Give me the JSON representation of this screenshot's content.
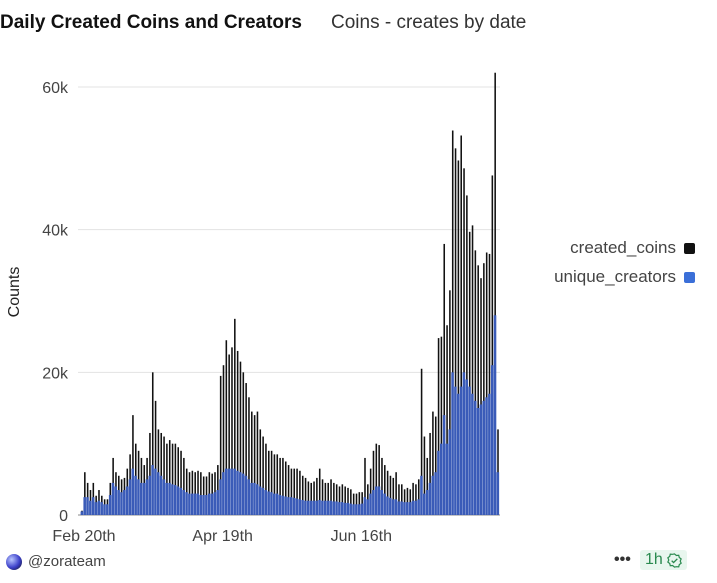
{
  "header": {
    "title": "Daily Created Coins and Creators",
    "subtitle": "Coins - creates by date"
  },
  "footer": {
    "user": "@zorateam",
    "more": "•••",
    "freshness": "1h",
    "status_icon": "check-shield-icon"
  },
  "chart_data": {
    "type": "bar",
    "ylabel": "Counts",
    "ylim": [
      0,
      60000
    ],
    "y_ticks": [
      "0",
      "20k",
      "40k",
      "60k"
    ],
    "y_tick_values": [
      0,
      20000,
      40000,
      60000
    ],
    "x_ticks": [
      {
        "label": "Feb 20th",
        "index": 0
      },
      {
        "label": "Apr 19th",
        "index": 49
      },
      {
        "label": "Jun 16th",
        "index": 98
      }
    ],
    "grid": true,
    "legend": "right",
    "series": [
      {
        "name": "created_coins",
        "color": "#111111",
        "values": [
          600,
          6000,
          4500,
          3500,
          4500,
          2700,
          3500,
          2700,
          2200,
          2200,
          4500,
          8000,
          6000,
          5500,
          5000,
          5200,
          6500,
          8500,
          14000,
          10000,
          9000,
          8000,
          7000,
          8000,
          11500,
          20000,
          16000,
          12000,
          11500,
          11000,
          10000,
          10500,
          10000,
          10000,
          9500,
          9000,
          8000,
          6500,
          6000,
          6200,
          6000,
          6200,
          6000,
          5400,
          5400,
          6000,
          5800,
          6000,
          7000,
          19500,
          21000,
          24500,
          22500,
          23500,
          27500,
          23000,
          21500,
          20000,
          18500,
          16500,
          14500,
          14000,
          14500,
          12000,
          11000,
          10000,
          9000,
          9000,
          8500,
          8500,
          8000,
          8000,
          7500,
          7000,
          6500,
          6500,
          6500,
          6200,
          5500,
          5200,
          4700,
          4500,
          4700,
          5200,
          6500,
          5000,
          4500,
          4500,
          5000,
          4500,
          4300,
          4000,
          4300,
          4000,
          3800,
          3600,
          3000,
          3000,
          3200,
          3200,
          8000,
          4300,
          6500,
          9000,
          10000,
          9800,
          8000,
          7000,
          6200,
          5500,
          5200,
          6000,
          4300,
          4300,
          3600,
          3800,
          3600,
          4500,
          4300,
          5000,
          20500,
          11000,
          8000,
          11500,
          14500,
          13800,
          24800,
          25000,
          38000,
          26600,
          31500,
          53900,
          51400,
          49700,
          53200,
          48600,
          44800,
          39700,
          40600,
          37100,
          35000,
          33200,
          35300,
          36800,
          36600,
          47600,
          62000,
          12000
        ]
      },
      {
        "name": "unique_creators",
        "color": "#3a5bb8",
        "values": [
          500,
          2500,
          2500,
          2000,
          2500,
          1800,
          2000,
          1800,
          1500,
          1500,
          2800,
          4500,
          4000,
          3500,
          3200,
          3500,
          4000,
          5000,
          6500,
          5500,
          5000,
          4500,
          4500,
          5000,
          5500,
          7000,
          6500,
          6000,
          5500,
          5000,
          4500,
          4500,
          4300,
          4200,
          4000,
          3800,
          3500,
          3200,
          3000,
          3000,
          3000,
          3000,
          2800,
          2800,
          2800,
          3000,
          3000,
          3200,
          3500,
          5000,
          6000,
          6500,
          6500,
          6500,
          6500,
          6200,
          6000,
          5800,
          5500,
          5000,
          4500,
          4500,
          4300,
          4000,
          3800,
          3500,
          3300,
          3200,
          3000,
          3000,
          2800,
          2700,
          2600,
          2500,
          2500,
          2400,
          2300,
          2200,
          2100,
          2000,
          2000,
          2000,
          2000,
          2000,
          2100,
          2000,
          2000,
          2000,
          2000,
          1900,
          1900,
          1800,
          1800,
          1700,
          1700,
          1600,
          1500,
          1500,
          1500,
          1600,
          2500,
          2200,
          3000,
          3500,
          4000,
          4000,
          3500,
          3000,
          2600,
          2400,
          2200,
          2200,
          1900,
          1900,
          1800,
          1800,
          1800,
          2000,
          2000,
          2200,
          5500,
          3000,
          3500,
          4500,
          5500,
          6000,
          9000,
          10000,
          14000,
          10000,
          12000,
          20000,
          18000,
          17000,
          18000,
          20000,
          19000,
          18000,
          17000,
          16000,
          15000,
          15500,
          16000,
          16500,
          17000,
          21000,
          28000,
          6000
        ]
      }
    ]
  }
}
